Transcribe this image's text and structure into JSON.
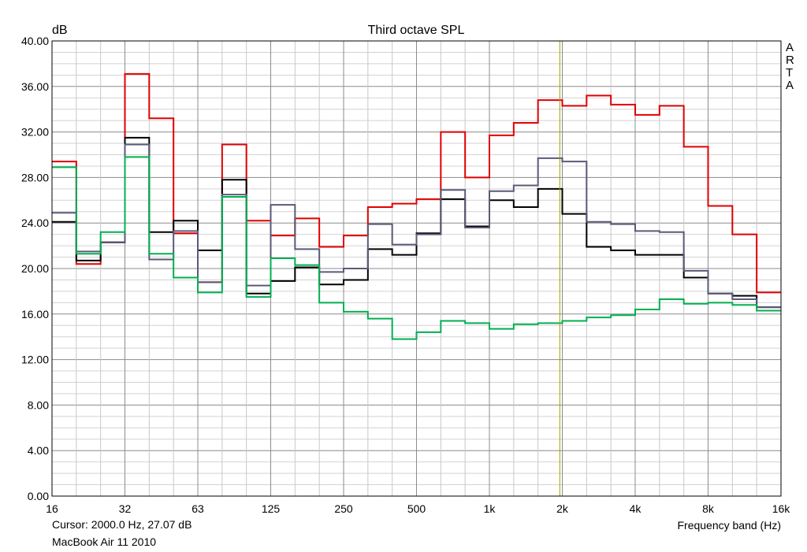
{
  "chart_data": {
    "type": "line",
    "title": "Third octave SPL",
    "ylabel": "dB",
    "xlabel": "Frequency band (Hz)",
    "ylim": [
      0,
      40
    ],
    "y_ticks": [
      "0.00",
      "4.00",
      "8.00",
      "12.00",
      "16.00",
      "20.00",
      "24.00",
      "28.00",
      "32.00",
      "36.00",
      "40.00"
    ],
    "x_tick_labels": [
      "16",
      "32",
      "63",
      "125",
      "250",
      "500",
      "1k",
      "2k",
      "4k",
      "8k",
      "16k"
    ],
    "x_scale": "log (third-octave bands)",
    "grid": true,
    "bands": [
      "16",
      "20",
      "25",
      "31.5",
      "40",
      "50",
      "63",
      "80",
      "100",
      "125",
      "160",
      "200",
      "250",
      "315",
      "400",
      "500",
      "630",
      "800",
      "1k",
      "1.25k",
      "1.6k",
      "2k",
      "2.5k",
      "3.15k",
      "4k",
      "5k",
      "6.3k",
      "8k",
      "10k",
      "12.5k",
      "16k"
    ],
    "series": [
      {
        "color": "#e00000",
        "values": [
          29.4,
          20.4,
          22.3,
          37.1,
          33.2,
          23.1,
          18.8,
          30.9,
          24.2,
          22.9,
          24.4,
          21.9,
          22.9,
          25.4,
          25.7,
          26.1,
          32.0,
          28.0,
          31.7,
          32.8,
          34.8,
          34.3,
          35.2,
          34.4,
          33.5,
          34.3,
          30.7,
          25.5,
          23.0,
          17.9,
          17.9
        ]
      },
      {
        "color": "#000000",
        "values": [
          24.1,
          20.7,
          22.3,
          31.5,
          23.2,
          24.2,
          21.6,
          27.8,
          17.8,
          18.9,
          20.1,
          18.6,
          19.0,
          21.7,
          21.2,
          23.1,
          26.1,
          23.7,
          26.0,
          25.4,
          27.0,
          24.8,
          21.9,
          21.6,
          21.2,
          21.2,
          19.2,
          17.8,
          17.6,
          16.6,
          16.6
        ]
      },
      {
        "color": "#5a5a78",
        "values": [
          24.9,
          21.5,
          22.3,
          30.9,
          20.8,
          23.3,
          18.8,
          26.5,
          18.5,
          25.6,
          21.7,
          19.7,
          20.0,
          23.9,
          22.1,
          23.0,
          26.9,
          23.6,
          26.8,
          27.3,
          29.7,
          29.4,
          24.1,
          23.9,
          23.3,
          23.2,
          19.8,
          17.8,
          17.3,
          16.6,
          16.6
        ]
      },
      {
        "color": "#00b050",
        "values": [
          28.9,
          21.3,
          23.2,
          29.8,
          21.3,
          19.2,
          17.9,
          26.3,
          17.5,
          20.9,
          20.3,
          17.0,
          16.2,
          15.6,
          13.8,
          14.4,
          15.4,
          15.2,
          14.7,
          15.1,
          15.2,
          15.4,
          15.7,
          15.9,
          16.4,
          17.3,
          16.9,
          17.0,
          16.8,
          16.3,
          16.3
        ]
      }
    ],
    "cursor": {
      "frequency_hz": 2000.0,
      "color": "#a0a000"
    }
  },
  "cursor_readout": "Cursor:  2000.0 Hz, 27.07 dB",
  "device_label": "MacBook Air 11 2010",
  "watermark": [
    "A",
    "R",
    "T",
    "A"
  ]
}
